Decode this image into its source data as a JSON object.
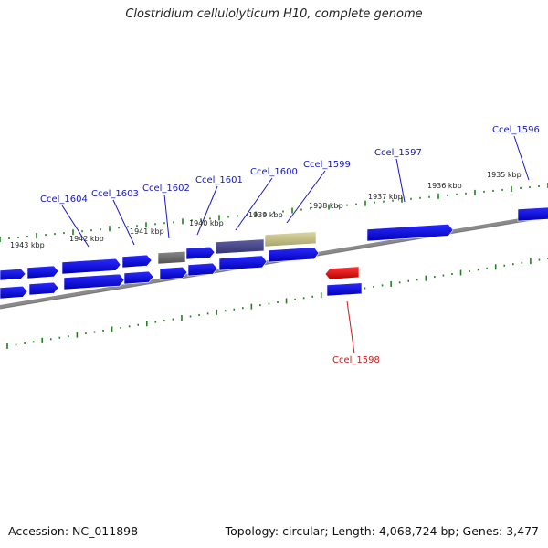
{
  "title": "Clostridium cellulolyticum H10, complete genome",
  "footer": {
    "accession": "Accession: NC_011898",
    "summary": "Topology: circular; Length: 4,068,724 bp; Genes: 3,477"
  },
  "colors": {
    "gene": "#0a0ae6",
    "highlight": "#e61a1a",
    "grey": "#707070",
    "slate": "#4d4d99",
    "khaki": "#c9c38a",
    "tick": "#208020",
    "backbone": "#7a7a7a",
    "label_blue": "#1515c8",
    "label_red": "#cc1a1a"
  },
  "kbp_labels": [
    {
      "text": "1943 kbp"
    },
    {
      "text": "1942 kbp"
    },
    {
      "text": "1941 kbp"
    },
    {
      "text": "1940 kbp"
    },
    {
      "text": "1939 kbp"
    },
    {
      "text": "1938 kbp"
    },
    {
      "text": "1937 kbp"
    },
    {
      "text": "1936 kbp"
    },
    {
      "text": "1935 kbp"
    }
  ],
  "gene_labels": [
    {
      "text": "Ccel_1604"
    },
    {
      "text": "Ccel_1603"
    },
    {
      "text": "Ccel_1602"
    },
    {
      "text": "Ccel_1601"
    },
    {
      "text": "Ccel_1600"
    },
    {
      "text": "Ccel_1599"
    },
    {
      "text": "Ccel_1597"
    },
    {
      "text": "Ccel_1596"
    },
    {
      "text": "Ccel_1598"
    }
  ]
}
